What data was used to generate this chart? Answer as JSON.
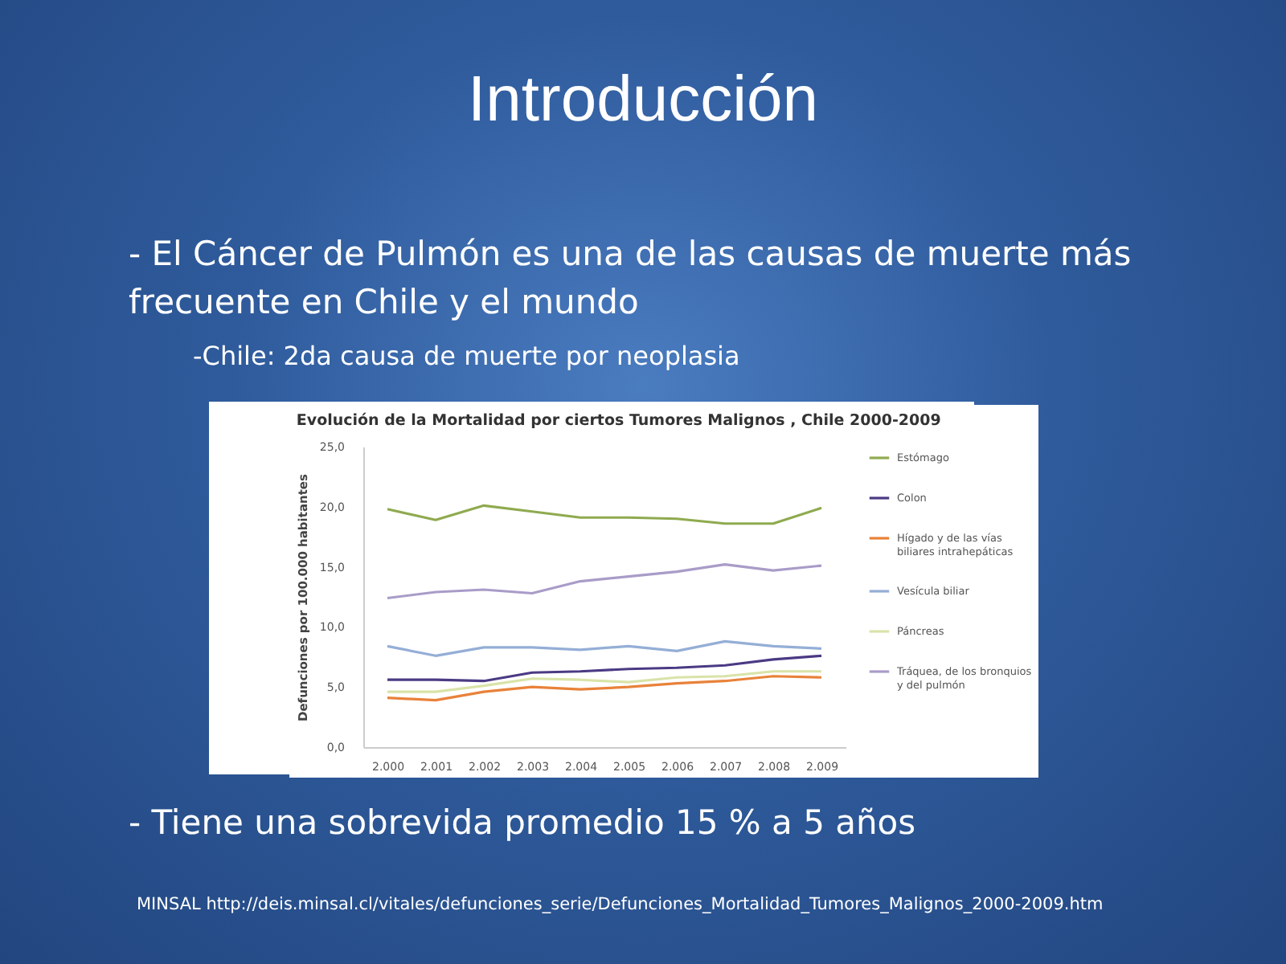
{
  "chart_data": {
    "type": "line",
    "title": "Evolución de la Mortalidad por ciertos Tumores Malignos , Chile 2000-2009",
    "ylabel": "Defunciones por 100.000 habitantes",
    "annotations": [
      "Introducción",
      "- El Cáncer de Pulmón es una de las causas de muerte más frecuente en Chile y el mundo",
      "-Chile: 2da causa de muerte por neoplasia",
      "- Tiene una sobrevida promedio 15 % a 5 años",
      "MINSAL  http://deis.minsal.cl/vitales/defunciones_serie/Defunciones_Mortalidad_Tumores_Malignos_2000-2009.htm"
    ],
    "categories": [
      "2.000",
      "2.001",
      "2.002",
      "2.003",
      "2.004",
      "2.005",
      "2.006",
      "2.007",
      "2.008",
      "2.009"
    ],
    "series": [
      {
        "name": "Estómago",
        "color": "#8faa4f",
        "values": [
          19.8,
          18.9,
          20.1,
          19.6,
          19.1,
          19.1,
          19.0,
          18.6,
          18.6,
          19.9
        ]
      },
      {
        "name": "Colon",
        "color": "#4b3a84",
        "values": [
          5.6,
          5.6,
          5.5,
          6.2,
          6.3,
          6.5,
          6.6,
          6.8,
          7.3,
          7.6
        ]
      },
      {
        "name": "Hígado y de las vías biliares intrahepáticas",
        "color": "#e8823a",
        "values": [
          4.1,
          3.9,
          4.6,
          5.0,
          4.8,
          5.0,
          5.3,
          5.5,
          5.9,
          5.8
        ]
      },
      {
        "name": "Vesícula biliar",
        "color": "#94aed6",
        "values": [
          8.4,
          7.6,
          8.3,
          8.3,
          8.1,
          8.4,
          8.0,
          8.8,
          8.4,
          8.2
        ]
      },
      {
        "name": "Páncreas",
        "color": "#d9e3a8",
        "values": [
          4.6,
          4.6,
          5.1,
          5.7,
          5.6,
          5.4,
          5.8,
          5.9,
          6.3,
          6.3
        ]
      },
      {
        "name": "Tráquea, de los bronquios y del pulmón",
        "color": "#a99cc8",
        "values": [
          12.4,
          12.9,
          13.1,
          12.8,
          13.8,
          14.2,
          14.6,
          15.2,
          14.7,
          15.1
        ]
      }
    ],
    "ylim": [
      0,
      25
    ],
    "yticks": [
      {
        "value": 0,
        "label": "0,0"
      },
      {
        "value": 5,
        "label": "5,0"
      },
      {
        "value": 10,
        "label": "10,0"
      },
      {
        "value": 15,
        "label": "15,0"
      },
      {
        "value": 20,
        "label": "20,0"
      },
      {
        "value": 25,
        "label": "25,0"
      }
    ],
    "grid": false,
    "legend": "right",
    "marker": "none",
    "line_style": "solid"
  }
}
